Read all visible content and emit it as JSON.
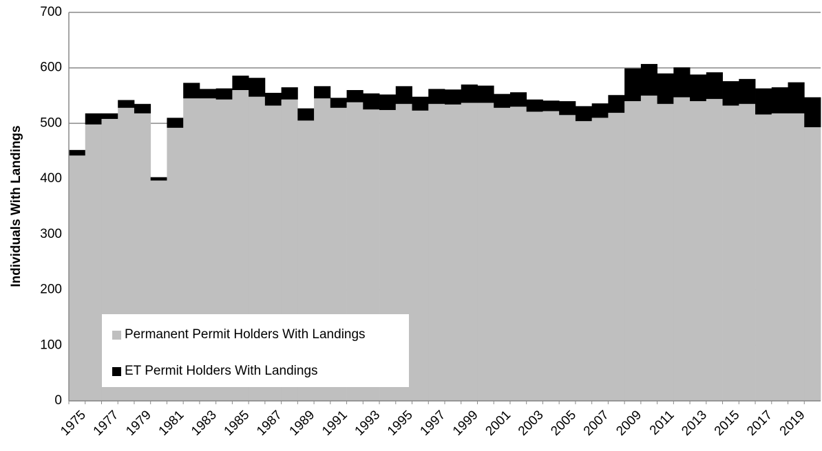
{
  "chart_data": {
    "type": "stacked_bar",
    "y_label": "Individuals With Landings",
    "categories": [
      "1975",
      null,
      "1977",
      null,
      "1979",
      null,
      "1981",
      null,
      "1983",
      null,
      "1985",
      null,
      "1987",
      null,
      "1989",
      null,
      "1991",
      null,
      "1993",
      null,
      "1995",
      null,
      "1997",
      null,
      "1999",
      null,
      "2001",
      null,
      "2003",
      null,
      "2005",
      null,
      "2007",
      null,
      "2009",
      null,
      "2011",
      null,
      "2013",
      null,
      "2015",
      null,
      "2017",
      null,
      "2019",
      null
    ],
    "series": [
      {
        "name": "Permanent Permit Holders With Landings",
        "color": "#bfbfbf",
        "values": [
          442,
          498,
          508,
          528,
          518,
          397,
          492,
          545,
          545,
          543,
          560,
          548,
          532,
          543,
          505,
          545,
          528,
          538,
          525,
          524,
          535,
          523,
          535,
          534,
          537,
          537,
          528,
          530,
          521,
          522,
          515,
          504,
          510,
          519,
          540,
          550,
          535,
          547,
          540,
          544,
          532,
          535,
          516,
          518,
          518,
          493
        ]
      },
      {
        "name": "ET Permit Holders With Landings",
        "color": "#000000",
        "values": [
          10,
          20,
          10,
          14,
          17,
          6,
          18,
          28,
          17,
          20,
          26,
          34,
          23,
          22,
          22,
          22,
          18,
          22,
          29,
          28,
          32,
          25,
          27,
          27,
          33,
          31,
          25,
          26,
          22,
          19,
          25,
          27,
          26,
          32,
          59,
          57,
          55,
          54,
          48,
          48,
          44,
          45,
          47,
          47,
          56,
          54
        ]
      }
    ],
    "ylim": [
      0,
      700
    ],
    "yticks": [
      0,
      100,
      200,
      300,
      400,
      500,
      600,
      700
    ],
    "grid": true
  }
}
